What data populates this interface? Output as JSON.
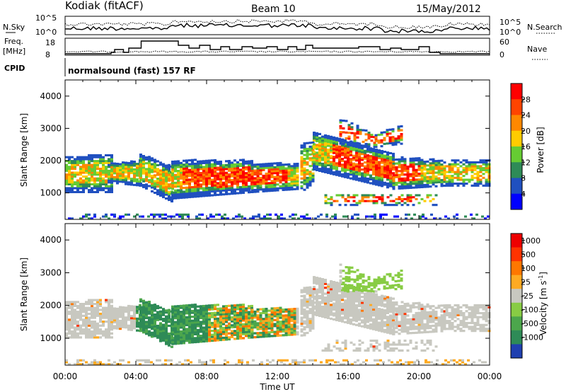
{
  "header": {
    "title": "Kodiak (fitACF)",
    "beam": "Beam 10",
    "date": "15/May/2012"
  },
  "summary": {
    "nsky_label": "N.Sky",
    "nsearch_label": "N.Search",
    "freq_label_1": "Freq.",
    "freq_label_2": "[MHz]",
    "nave_label": "Nave",
    "cpid_label": "CPID",
    "cpid_value": "normalsound (fast) 157 RF",
    "nsky_ticks": [
      "10^5",
      "10^0"
    ],
    "nsearch_ticks": [
      "10^5",
      "10^0"
    ],
    "freq_ticks": [
      "18",
      "8"
    ],
    "nave_ticks": [
      "60",
      "0"
    ]
  },
  "chart_data": [
    {
      "type": "heatmap",
      "id": "power",
      "ylabel": "Slant Range [km]",
      "yticks": [
        "4000",
        "3000",
        "2000",
        "1000"
      ],
      "ylim": [
        180,
        4500
      ],
      "colorbar_label": "Power [dB]",
      "colorbar_ticks": [
        "28",
        "24",
        "20",
        "16",
        "12",
        "8",
        "4"
      ],
      "colors": [
        "#0000ff",
        "#2050c0",
        "#2e8b57",
        "#66cc33",
        "#ffcc00",
        "#ff8800",
        "#ff4400",
        "#ff0000"
      ]
    },
    {
      "type": "heatmap",
      "id": "velocity",
      "ylabel": "Slant Range [km]",
      "yticks": [
        "4000",
        "3000",
        "2000",
        "1000"
      ],
      "ylim": [
        180,
        4500
      ],
      "colorbar_label": "Velocity [m s",
      "colorbar_label_sup": "-1",
      "colorbar_label_end": "]",
      "colorbar_ticks": [
        "1000",
        "500",
        "100",
        "25",
        "-25",
        "-100",
        "-500",
        "-1000"
      ],
      "colors": [
        "#2040b0",
        "#2e8b57",
        "#4ca64c",
        "#88cc44",
        "#c8c8c0",
        "#ffaa22",
        "#ff7700",
        "#ff3300",
        "#ee0000"
      ]
    }
  ],
  "xaxis": {
    "label": "Time UT",
    "ticks": [
      "00:00",
      "04:00",
      "08:00",
      "12:00",
      "16:00",
      "20:00",
      "00:00"
    ]
  }
}
